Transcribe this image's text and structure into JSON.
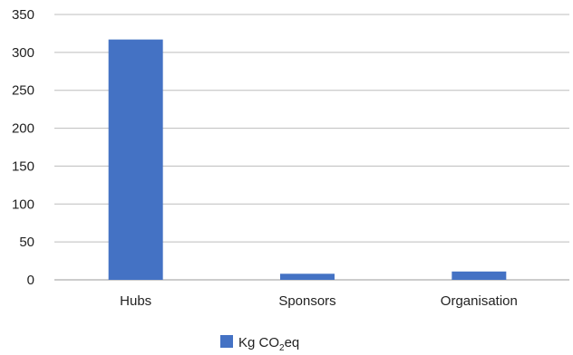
{
  "chart_data": {
    "type": "bar",
    "categories": [
      "Hubs",
      "Sponsors",
      "Organisation"
    ],
    "series": [
      {
        "name": "Kg CO2eq",
        "values": [
          317,
          8,
          11
        ],
        "color": "#4472C4"
      }
    ],
    "ylim": [
      0,
      350
    ],
    "yticks": [
      0,
      50,
      100,
      150,
      200,
      250,
      300,
      350
    ],
    "grid": true,
    "legend_position": "bottom",
    "legend": {
      "prefix": "Kg CO",
      "subscript": "2",
      "suffix": "eq"
    }
  }
}
